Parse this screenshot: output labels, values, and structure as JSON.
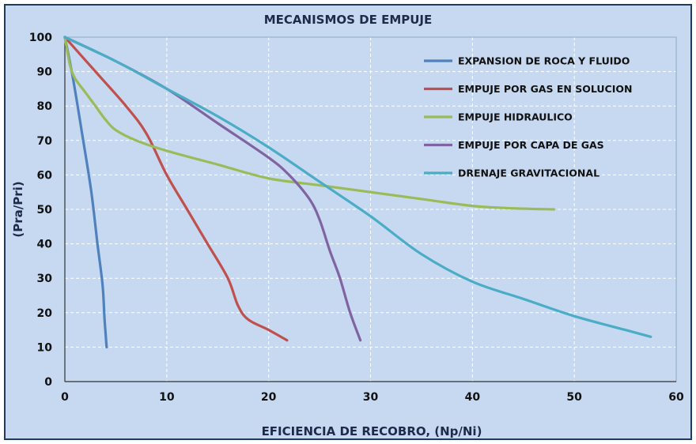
{
  "chart_data": {
    "type": "line",
    "title": "MECANISMOS DE EMPUJE",
    "xlabel": "EFICIENCIA DE RECOBRO, (Np/Ni)",
    "ylabel": "(Pra/Pri)",
    "xlim": [
      0,
      60
    ],
    "ylim": [
      0,
      100
    ],
    "xticks": [
      "0",
      "10",
      "20",
      "30",
      "40",
      "50",
      "60"
    ],
    "yticks": [
      "0",
      "10",
      "20",
      "30",
      "40",
      "50",
      "60",
      "70",
      "80",
      "90",
      "100"
    ],
    "grid": true,
    "legend_position": "top-right",
    "colors": {
      "background": "#c6d9f0",
      "grid": "#ffffff",
      "frame": "#1f3a5f"
    },
    "series": [
      {
        "name": "EXPANSION DE ROCA Y FLUIDO",
        "color": "#4f81bd",
        "x": [
          0,
          0.8,
          1.8,
          2.6,
          3.2,
          3.7,
          3.9,
          4.1
        ],
        "y": [
          100,
          88,
          70,
          55,
          40,
          28,
          18,
          10
        ]
      },
      {
        "name": "EMPUJE POR GAS EN SOLUCION",
        "color": "#c0504d",
        "x": [
          0,
          3,
          6,
          8,
          10,
          12,
          14,
          16,
          17,
          18,
          20,
          21.8
        ],
        "y": [
          100,
          90,
          80,
          72,
          60,
          50,
          40,
          30,
          22,
          18,
          15,
          12
        ]
      },
      {
        "name": "EMPUJE HIDRAULICO",
        "color": "#9bbb59",
        "x": [
          0,
          0.5,
          1,
          2,
          3,
          4,
          5,
          7,
          10,
          15,
          20,
          25,
          30,
          35,
          40,
          44,
          48
        ],
        "y": [
          100,
          92,
          88,
          84,
          80,
          76,
          73,
          70,
          67,
          63,
          59,
          57,
          55,
          53,
          51,
          50.3,
          50
        ]
      },
      {
        "name": "EMPUJE POR CAPA DE GAS",
        "color": "#8064a2",
        "x": [
          0,
          5,
          10,
          15,
          20,
          22,
          24,
          25,
          26,
          27,
          28,
          29
        ],
        "y": [
          100,
          93,
          85,
          75,
          65,
          60,
          53,
          47,
          38,
          30,
          20,
          12
        ]
      },
      {
        "name": "DRENAJE GRAVITACIONAL",
        "color": "#4bacc6",
        "x": [
          0,
          5,
          10,
          15,
          20,
          25,
          30,
          35,
          40,
          45,
          50,
          55,
          57.5
        ],
        "y": [
          100,
          93,
          85,
          77,
          68,
          58,
          48,
          37,
          29,
          24,
          19,
          15,
          13
        ]
      }
    ]
  }
}
